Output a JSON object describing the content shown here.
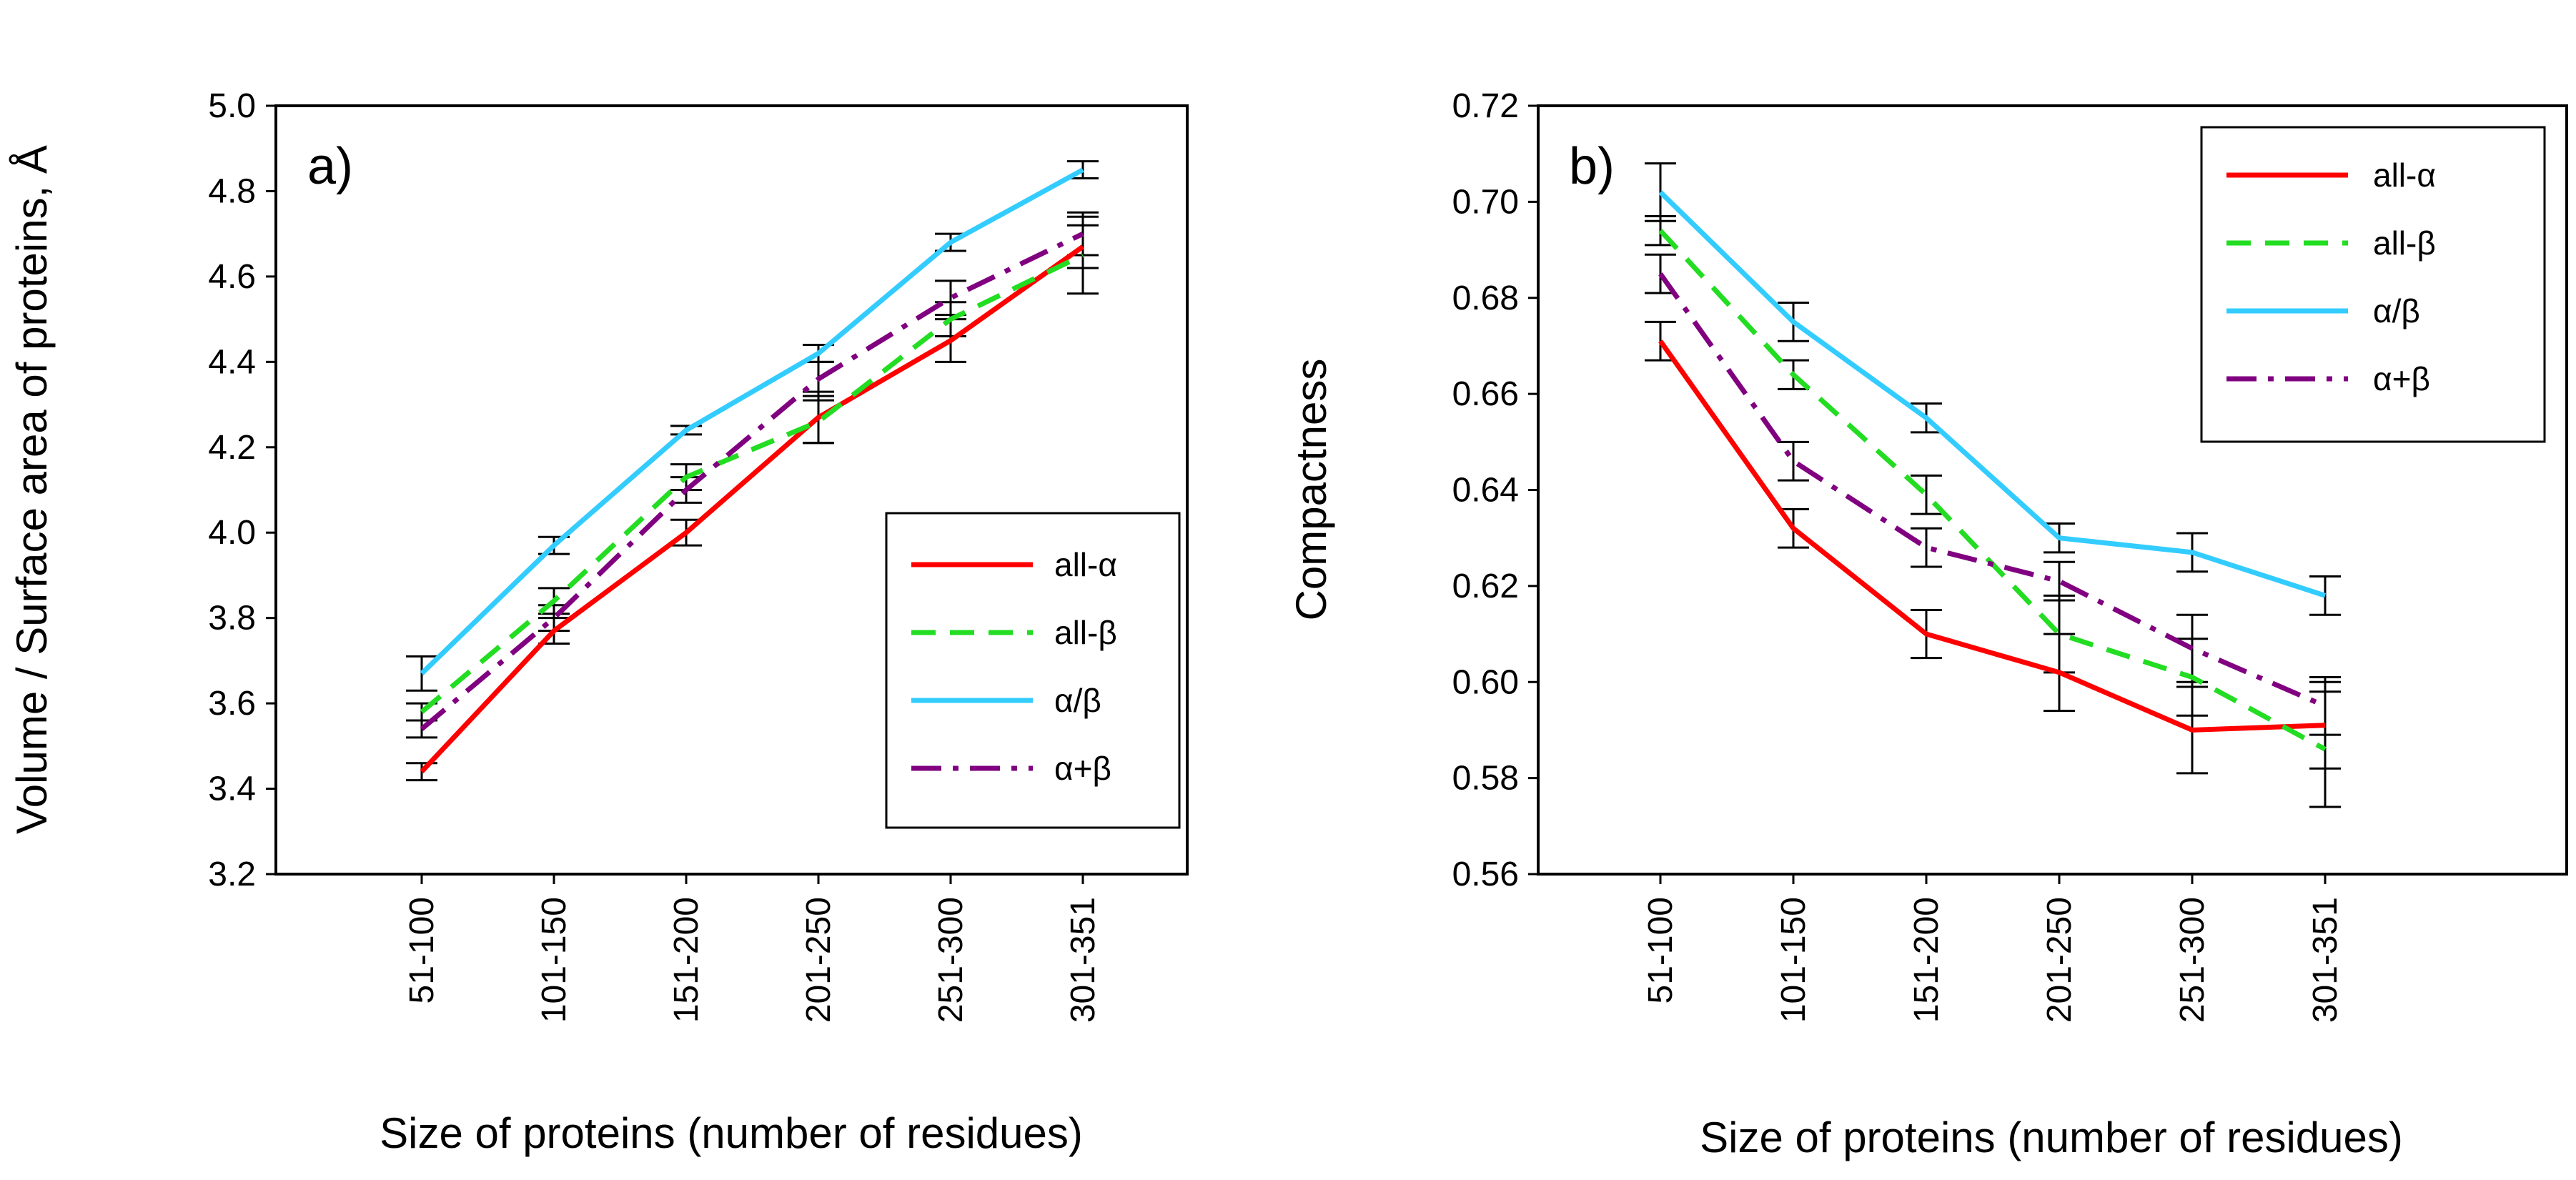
{
  "chart_data": [
    {
      "type": "line",
      "panel_label": "a)",
      "xlabel": "Size of proteins (number of residues)",
      "ylabel": "Volume / Surface area of proteins, Å",
      "categories": [
        "51-100",
        "101-150",
        "151-200",
        "201-250",
        "251-300",
        "301-351"
      ],
      "ylim": [
        3.2,
        5.0
      ],
      "yticks": [
        "3.2",
        "3.4",
        "3.6",
        "3.8",
        "4.0",
        "4.2",
        "4.4",
        "4.6",
        "4.8",
        "5.0"
      ],
      "legend_position": "lower-right",
      "series": [
        {
          "name": "all-α",
          "color": "#ff0000",
          "dash": "solid",
          "values": [
            3.44,
            3.77,
            4.0,
            4.27,
            4.45,
            4.67
          ],
          "errors": [
            0.02,
            0.03,
            0.03,
            0.06,
            0.05,
            0.05
          ]
        },
        {
          "name": "all-β",
          "color": "#22dd22",
          "dash": "dashed",
          "values": [
            3.58,
            3.84,
            4.13,
            4.26,
            4.5,
            4.65
          ],
          "errors": [
            0.02,
            0.03,
            0.03,
            0.05,
            0.04,
            0.09
          ]
        },
        {
          "name": "α/β",
          "color": "#33ccff",
          "dash": "solid",
          "values": [
            3.67,
            3.97,
            4.24,
            4.42,
            4.68,
            4.85
          ],
          "errors": [
            0.04,
            0.02,
            0.01,
            0.02,
            0.02,
            0.02
          ]
        },
        {
          "name": "α+β",
          "color": "#800080",
          "dash": "dashdot",
          "values": [
            3.54,
            3.8,
            4.1,
            4.36,
            4.55,
            4.7
          ],
          "errors": [
            0.02,
            0.03,
            0.03,
            0.04,
            0.04,
            0.05
          ]
        }
      ]
    },
    {
      "type": "line",
      "panel_label": "b)",
      "xlabel": "Size of proteins (number of residues)",
      "ylabel": "Compactness",
      "categories": [
        "51-100",
        "101-150",
        "151-200",
        "201-250",
        "251-300",
        "301-351"
      ],
      "ylim": [
        0.56,
        0.72
      ],
      "yticks": [
        "0.56",
        "0.58",
        "0.60",
        "0.62",
        "0.64",
        "0.66",
        "0.68",
        "0.70",
        "0.72"
      ],
      "legend_position": "top-right",
      "series": [
        {
          "name": "all-α",
          "color": "#ff0000",
          "dash": "solid",
          "values": [
            0.671,
            0.632,
            0.61,
            0.602,
            0.59,
            0.591
          ],
          "errors": [
            0.004,
            0.004,
            0.005,
            0.008,
            0.009,
            0.009
          ]
        },
        {
          "name": "all-β",
          "color": "#22dd22",
          "dash": "dashed",
          "values": [
            0.694,
            0.664,
            0.639,
            0.61,
            0.601,
            0.586
          ],
          "errors": [
            0.003,
            0.003,
            0.004,
            0.008,
            0.008,
            0.012
          ]
        },
        {
          "name": "α/β",
          "color": "#33ccff",
          "dash": "solid",
          "values": [
            0.702,
            0.675,
            0.655,
            0.63,
            0.627,
            0.618
          ],
          "errors": [
            0.006,
            0.004,
            0.003,
            0.003,
            0.004,
            0.004
          ]
        },
        {
          "name": "α+β",
          "color": "#800080",
          "dash": "dashdot",
          "values": [
            0.685,
            0.646,
            0.628,
            0.621,
            0.607,
            0.595
          ],
          "errors": [
            0.004,
            0.004,
            0.004,
            0.004,
            0.007,
            0.006
          ]
        }
      ]
    }
  ]
}
